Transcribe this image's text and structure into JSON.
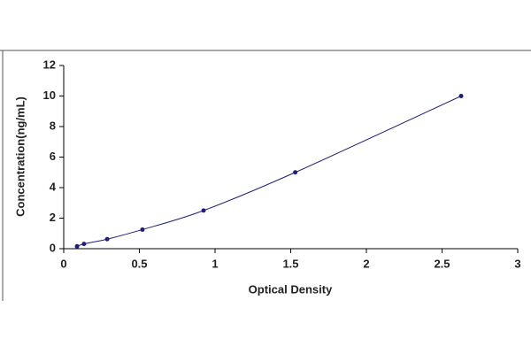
{
  "chart_data": {
    "type": "line",
    "x_label": "Optical Density",
    "y_label": "Concentration(ng/mL)",
    "x": [
      0.088,
      0.134,
      0.287,
      0.52,
      0.924,
      1.53,
      2.626
    ],
    "values": [
      0.156,
      0.312,
      0.625,
      1.25,
      2.5,
      5,
      10
    ],
    "color": "#1f1f7a",
    "xlim": [
      0,
      3
    ],
    "xticks": [
      0,
      0.5,
      1,
      1.5,
      2,
      2.5,
      3
    ],
    "ylim": [
      0,
      12
    ],
    "yticks": [
      0,
      2,
      4,
      6,
      8,
      10,
      12
    ],
    "grid": false
  }
}
